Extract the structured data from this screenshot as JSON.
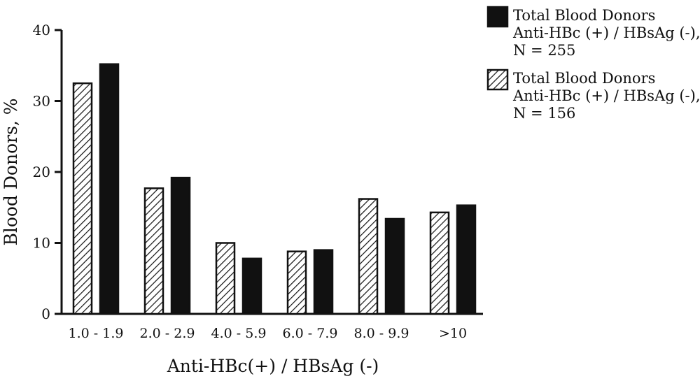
{
  "chart_data": {
    "type": "bar",
    "title": "",
    "xlabel": "Anti-HBc(+) / HBsAg (-)",
    "ylabel": "Blood Donors, %",
    "ylim": [
      0,
      40
    ],
    "yticks": [
      0,
      10,
      20,
      30,
      40
    ],
    "grid": false,
    "legend_position": "top-right",
    "categories": [
      "1.0 - 1.9",
      "2.0 - 2.9",
      "4.0 - 5.9",
      "6.0 - 7.9",
      "8.0 - 9.9",
      ">10"
    ],
    "series": [
      {
        "key": "hatched",
        "legend_lines": [
          "Total Blood Donors",
          "Anti-HBc (+) / HBsAg (-),",
          "N = 156"
        ],
        "fill": "hatched",
        "color": "#111111",
        "values": [
          32.5,
          17.7,
          10.0,
          8.8,
          16.2,
          14.3
        ]
      },
      {
        "key": "solid",
        "legend_lines": [
          "Total Blood Donors",
          "Anti-HBc (+) / HBsAg (-),",
          "N = 255"
        ],
        "fill": "solid",
        "color": "#111111",
        "values": [
          35.2,
          19.2,
          7.8,
          9.0,
          13.4,
          15.3
        ]
      }
    ]
  }
}
